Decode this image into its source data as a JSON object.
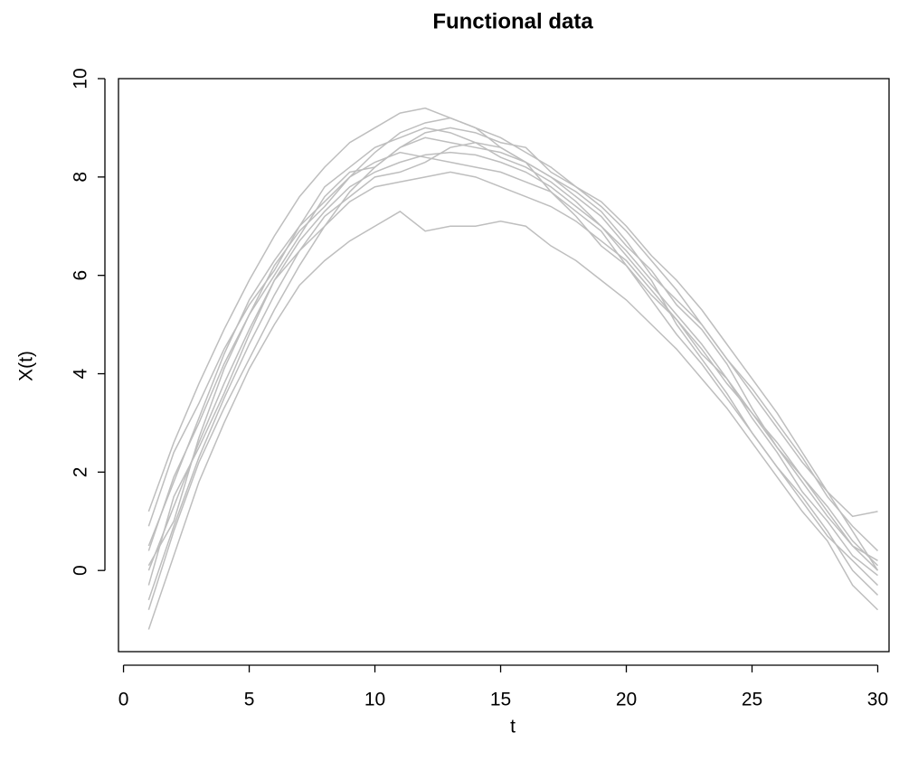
{
  "chart_data": {
    "type": "line",
    "title": "Functional data",
    "x_label": "t",
    "y_label": "X(t)",
    "x": [
      1,
      2,
      3,
      4,
      5,
      6,
      7,
      8,
      9,
      10,
      11,
      12,
      13,
      14,
      15,
      16,
      17,
      18,
      19,
      20,
      21,
      22,
      23,
      24,
      25,
      26,
      27,
      28,
      29,
      30
    ],
    "xlim": [
      -0.2,
      30.45
    ],
    "ylim": [
      -1.65,
      10
    ],
    "xticks": [
      0,
      5,
      10,
      15,
      20,
      25,
      30
    ],
    "yticks": [
      0,
      2,
      4,
      6,
      8,
      10
    ],
    "series": [
      {
        "color": "#bebebe",
        "values": [
          0,
          1.3,
          2.6,
          3.8,
          4.9,
          5.9,
          6.7,
          7.3,
          7.8,
          8.1,
          8.3,
          8.45,
          8.5,
          8.45,
          8.3,
          8.1,
          7.8,
          7.4,
          7.0,
          6.4,
          5.8,
          5.2,
          4.6,
          3.9,
          3.2,
          2.5,
          1.8,
          1.1,
          0.5,
          0.0
        ]
      },
      {
        "color": "#bebebe",
        "values": [
          1.2,
          2.6,
          3.8,
          4.9,
          5.9,
          6.8,
          7.6,
          8.2,
          8.7,
          9.0,
          9.3,
          9.4,
          9.2,
          9.0,
          8.8,
          8.5,
          8.2,
          7.8,
          7.4,
          6.9,
          6.3,
          5.7,
          5.0,
          4.3,
          3.6,
          2.9,
          2.2,
          1.6,
          1.1,
          1.2
        ]
      },
      {
        "color": "#bebebe",
        "values": [
          -1.2,
          0.3,
          1.8,
          3.0,
          4.1,
          5.0,
          5.8,
          6.3,
          6.7,
          7.0,
          7.3,
          6.9,
          7.0,
          7.0,
          7.1,
          7.0,
          6.6,
          6.3,
          5.9,
          5.5,
          5.0,
          4.5,
          3.9,
          3.3,
          2.6,
          1.9,
          1.2,
          0.6,
          -0.3,
          -0.8
        ]
      },
      {
        "color": "#bebebe",
        "values": [
          0.5,
          1.8,
          3.1,
          4.4,
          5.5,
          6.3,
          7.0,
          7.8,
          8.2,
          8.6,
          8.8,
          9.0,
          8.9,
          8.7,
          8.4,
          8.2,
          7.9,
          7.5,
          7.0,
          6.5,
          5.9,
          5.0,
          4.3,
          3.6,
          2.8,
          2.1,
          1.4,
          0.7,
          0.2,
          -0.3
        ]
      },
      {
        "color": "#bebebe",
        "values": [
          -0.6,
          0.9,
          2.3,
          3.5,
          4.6,
          5.6,
          6.5,
          7.2,
          7.6,
          8.0,
          8.1,
          8.3,
          8.6,
          8.7,
          8.6,
          8.3,
          8.0,
          7.7,
          7.3,
          6.7,
          6.0,
          5.5,
          5.0,
          4.3,
          3.7,
          3.0,
          2.3,
          1.5,
          0.9,
          0.4
        ]
      },
      {
        "color": "#bebebe",
        "values": [
          0.9,
          2.4,
          3.4,
          4.5,
          5.4,
          6.1,
          7.0,
          7.5,
          8.0,
          8.3,
          8.5,
          8.4,
          8.3,
          8.2,
          8.1,
          7.9,
          7.7,
          7.2,
          6.6,
          6.2,
          5.5,
          4.8,
          4.2,
          3.5,
          2.8,
          2.1,
          1.5,
          0.8,
          0.0,
          -0.5
        ]
      },
      {
        "color": "#bebebe",
        "values": [
          0.1,
          1.0,
          2.7,
          4.1,
          5.2,
          6.2,
          6.9,
          7.4,
          8.0,
          8.5,
          8.9,
          9.1,
          9.2,
          9.0,
          8.6,
          8.3,
          8.0,
          7.6,
          7.2,
          6.6,
          6.1,
          5.4,
          4.9,
          4.2,
          3.3,
          2.5,
          1.9,
          1.3,
          0.6,
          0.1
        ]
      },
      {
        "color": "#bebebe",
        "values": [
          -0.3,
          1.5,
          2.5,
          3.6,
          4.8,
          5.9,
          6.5,
          7.0,
          7.5,
          7.8,
          7.9,
          8.0,
          8.1,
          8.0,
          7.8,
          7.6,
          7.4,
          7.1,
          6.7,
          6.3,
          5.7,
          5.1,
          4.5,
          3.8,
          3.2,
          2.6,
          1.9,
          1.2,
          0.5,
          0.2
        ]
      },
      {
        "color": "#bebebe",
        "values": [
          0.4,
          1.9,
          3.0,
          4.2,
          5.2,
          6.0,
          6.8,
          7.6,
          8.1,
          8.2,
          8.6,
          8.8,
          8.7,
          8.6,
          8.5,
          8.3,
          7.7,
          7.3,
          6.9,
          6.2,
          5.6,
          5.1,
          4.4,
          3.9,
          3.1,
          2.4,
          1.6,
          1.0,
          0.3,
          -0.1
        ]
      },
      {
        "color": "#bebebe",
        "values": [
          -0.8,
          0.8,
          2.2,
          3.3,
          4.3,
          5.3,
          6.2,
          7.0,
          7.7,
          8.2,
          8.6,
          8.9,
          9.0,
          8.9,
          8.7,
          8.6,
          8.1,
          7.8,
          7.5,
          7.0,
          6.4,
          5.9,
          5.3,
          4.6,
          3.9,
          3.2,
          2.4,
          1.6,
          0.8,
          0.0
        ]
      }
    ]
  }
}
